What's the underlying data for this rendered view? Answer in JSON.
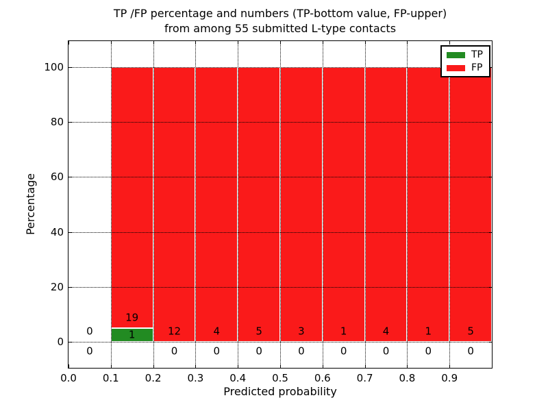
{
  "figure": {
    "title_line1": "TP /FP percentage and numbers (TP-bottom value, FP-upper)",
    "title_line2": "from among 55 submitted L-type contacts"
  },
  "axes": {
    "xlabel": "Predicted probability",
    "ylabel": "Percentage",
    "x_tick_labels": [
      "0.0",
      "0.1",
      "0.2",
      "0.3",
      "0.4",
      "0.5",
      "0.6",
      "0.7",
      "0.8",
      "0.9"
    ],
    "y_tick_labels": [
      "0",
      "20",
      "40",
      "60",
      "80",
      "100"
    ],
    "y_tick_values": [
      0,
      20,
      40,
      60,
      80,
      100
    ],
    "xlim": [
      0.0,
      1.0
    ],
    "ylim": [
      -9.5,
      109.5
    ],
    "grid_style": "dotted",
    "frame_color": "#000000",
    "background": "#ffffff"
  },
  "legend": {
    "position": "upper right",
    "items": [
      {
        "label": "TP",
        "color": "#228b22"
      },
      {
        "label": "FP",
        "color": "#fa1a1a"
      }
    ]
  },
  "chart_data": {
    "type": "bar",
    "mode": "percent-stacked-histogram",
    "title": "TP /FP percentage and numbers (TP-bottom value, FP-upper) from among 55 submitted L-type contacts",
    "xlabel": "Predicted probability",
    "ylabel": "Percentage",
    "xlim": [
      0.0,
      1.0
    ],
    "ylim": [
      -9.5,
      109.5
    ],
    "grid": "dotted",
    "legend_position": "upper right",
    "bin_edges": [
      0.0,
      0.1,
      0.2,
      0.3,
      0.4,
      0.5,
      0.6,
      0.7,
      0.8,
      0.9,
      1.0
    ],
    "series": [
      {
        "name": "TP",
        "color": "#228b22",
        "counts": [
          0,
          1,
          0,
          0,
          0,
          0,
          0,
          0,
          0,
          0
        ]
      },
      {
        "name": "FP",
        "color": "#fa1a1a",
        "counts": [
          0,
          19,
          12,
          4,
          5,
          3,
          1,
          4,
          1,
          5
        ]
      }
    ],
    "percent_heights": {
      "TP": [
        0,
        5,
        0,
        0,
        0,
        0,
        0,
        0,
        0,
        0
      ],
      "FP": [
        0,
        95,
        100,
        100,
        100,
        100,
        100,
        100,
        100,
        100
      ]
    },
    "total_contacts": 55
  }
}
